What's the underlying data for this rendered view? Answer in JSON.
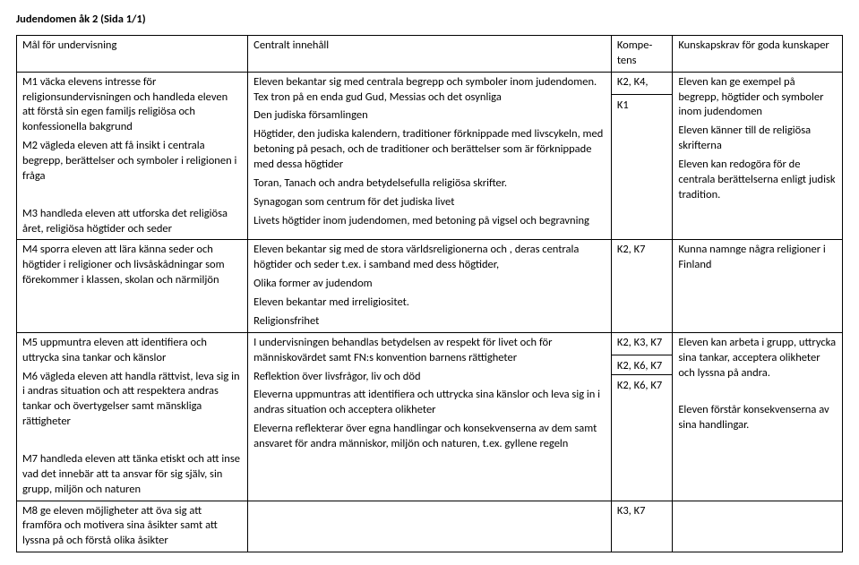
{
  "title": "Judendomen åk 2 (Sida 1/1)",
  "headers": {
    "mal": "Mål för undervisning",
    "inn": "Centralt innehåll",
    "komp": "Kompe-tens",
    "kuns": "Kunskapskrav för goda kunskaper"
  },
  "r1": {
    "mal": [
      "M1 väcka elevens intresse för religionsundervisningen och handleda eleven att förstå sin egen familjs religiösa och konfessionella bakgrund",
      "M2 vägleda eleven att få insikt i centrala begrepp, berättelser och symboler i religionen i fråga",
      " ",
      "M3 handleda eleven att utforska det religiösa året, religiösa högtider och seder"
    ],
    "inn": [
      "Eleven bekantar sig med centrala begrepp och symboler inom judendomen. Tex  tron på en enda gud Gud, Messias och det osynliga",
      "Den judiska församlingen",
      "Högtider, den judiska kalendern, traditioner förknippade med livscykeln, med betoning på pesach, och de traditioner och berättelser som är förknippade med dessa högtider",
      "Toran, Tanach och andra betydelsefulla religiösa skrifter.",
      "Synagogan som centrum för det judiska livet",
      "Livets högtider inom judendomen, med betoning på vigsel och begravning"
    ],
    "komp_top": "K2, K4,",
    "komp_bot": "K1",
    "kuns": [
      "Eleven kan ge exempel på begrepp, högtider och symboler inom judendomen",
      "Eleven känner till de religiösa skrifterna",
      "Eleven kan redogöra för de centrala berättelserna enligt judisk tradition."
    ]
  },
  "r2": {
    "mal": "M4 sporra eleven att lära känna seder och högtider i religioner och livsåskådningar som förekommer i klassen, skolan och närmiljön",
    "inn": [
      "Eleven bekantar sig med de stora världsreligionerna och , deras centrala högtider och seder  t.ex.  i samband med dess högtider,",
      "Olika former av judendom",
      "Eleven bekantar med irreligiositet.",
      "Religionsfrihet"
    ],
    "komp": "K2, K7",
    "kuns": "Kunna namnge några religioner i Finland"
  },
  "r3": {
    "mal": [
      "M5 uppmuntra eleven att identifiera och uttrycka sina tankar och känslor",
      "M6 vägleda eleven att handla rättvist, leva sig in i andras situation och att respektera andras tankar och övertygelser samt mänskliga rättigheter",
      " ",
      "M7 handleda eleven att tänka etiskt och att inse vad det innebär att ta ansvar för sig själv, sin grupp, miljön och naturen"
    ],
    "inn": [
      " I undervisningen behandlas betydelsen av respekt för livet och för människovärdet samt FN:s konvention barnens rättigheter",
      "Reflektion över livsfrågor, liv och död",
      "Eleverna uppmuntras att identifiera och uttrycka sina känslor och leva sig in i andras situation och acceptera olikheter",
      "Eleverna reflekterar över egna handlingar och konsekvenserna av dem samt ansvaret för andra människor, miljön och naturen, t.ex. gyllene regeln"
    ],
    "komp_a": "K2, K3, K7",
    "komp_b": "K2, K6, K7",
    "komp_c": "K2, K6, K7",
    "kuns": [
      "Eleven kan arbeta i grupp, uttrycka sina tankar, acceptera olikheter och lyssna på andra.",
      " ",
      "Eleven förstår konsekvenserna av sina handlingar."
    ]
  },
  "r4": {
    "mal": "M8 ge eleven möjligheter att öva sig att framföra och motivera sina åsikter samt att lyssna på och förstå olika åsikter",
    "komp": "K3, K7"
  }
}
